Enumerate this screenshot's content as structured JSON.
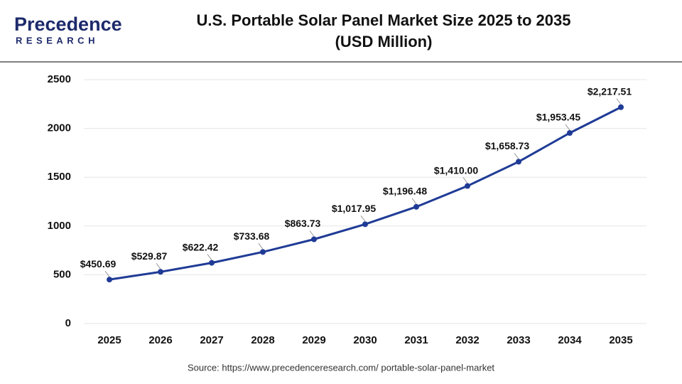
{
  "logo": {
    "name": "Precedence",
    "tagline": "RESEARCH"
  },
  "chart_data": {
    "type": "line",
    "title": "U.S. Portable Solar Panel Market Size 2025 to 2035",
    "subtitle": "(USD Million)",
    "categories": [
      "2025",
      "2026",
      "2027",
      "2028",
      "2029",
      "2030",
      "2031",
      "2032",
      "2033",
      "2034",
      "2035"
    ],
    "values": [
      450.69,
      529.87,
      622.42,
      733.68,
      863.73,
      1017.95,
      1196.48,
      1410.0,
      1658.73,
      1953.45,
      2217.51
    ],
    "value_labels": [
      "$450.69",
      "$529.87",
      "$622.42",
      "$733.68",
      "$863.73",
      "$1,017.95",
      "$1,196.48",
      "$1,410.00",
      "$1,658.73",
      "$1,953.45",
      "$2,217.51"
    ],
    "color": "#1f3b96",
    "ylim": [
      0,
      2500
    ],
    "yticks": [
      0,
      500,
      1000,
      1500,
      2000,
      2500
    ],
    "grid": true,
    "source": "Source: https://www.precedenceresearch.com/ portable-solar-panel-market"
  }
}
